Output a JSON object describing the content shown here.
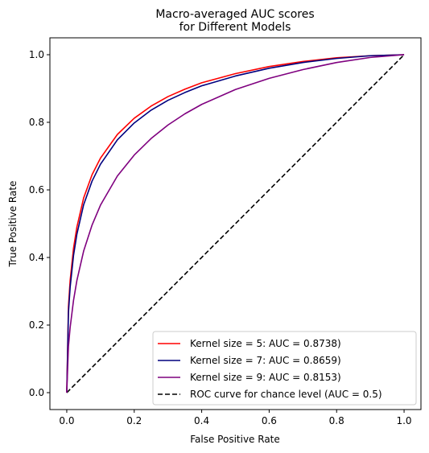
{
  "chart_data": {
    "type": "line",
    "title_line1": "Macro-averaged AUC scores",
    "title_line2": "for Different Models",
    "xlabel": "False Positive Rate",
    "ylabel": "True Positive Rate",
    "xlim": [
      -0.05,
      1.05
    ],
    "ylim": [
      -0.05,
      1.05
    ],
    "xticks": [
      0.0,
      0.2,
      0.4,
      0.6,
      0.8,
      1.0
    ],
    "yticks": [
      0.0,
      0.2,
      0.4,
      0.6,
      0.8,
      1.0
    ],
    "tick_labels": [
      "0.0",
      "0.2",
      "0.4",
      "0.6",
      "0.8",
      "1.0"
    ],
    "grid": false,
    "legend_position": "lower-right",
    "x": [
      0,
      0.005,
      0.01,
      0.02,
      0.03,
      0.05,
      0.075,
      0.1,
      0.15,
      0.2,
      0.25,
      0.3,
      0.35,
      0.4,
      0.5,
      0.6,
      0.7,
      0.8,
      0.9,
      1.0
    ],
    "series": [
      {
        "name": "Kernel size = 5: AUC = 0.8738)",
        "color": "#ff0000",
        "dash": "solid",
        "values": [
          0,
          0.255,
          0.332,
          0.427,
          0.49,
          0.576,
          0.645,
          0.694,
          0.764,
          0.812,
          0.848,
          0.876,
          0.898,
          0.917,
          0.944,
          0.965,
          0.98,
          0.991,
          0.997,
          1.0
        ]
      },
      {
        "name": "Kernel size = 7: AUC = 0.8659)",
        "color": "#00007f",
        "dash": "solid",
        "values": [
          0,
          0.237,
          0.312,
          0.406,
          0.469,
          0.556,
          0.626,
          0.676,
          0.748,
          0.798,
          0.836,
          0.865,
          0.888,
          0.908,
          0.937,
          0.96,
          0.977,
          0.989,
          0.997,
          1.0
        ]
      },
      {
        "name": "Kernel size = 9: AUC = 0.8153)",
        "color": "#7f007f",
        "dash": "solid",
        "values": [
          0,
          0.137,
          0.193,
          0.273,
          0.332,
          0.419,
          0.496,
          0.555,
          0.641,
          0.703,
          0.752,
          0.792,
          0.825,
          0.853,
          0.897,
          0.93,
          0.956,
          0.977,
          0.992,
          1.0
        ]
      },
      {
        "name": "ROC curve for chance level (AUC = 0.5)",
        "color": "#000000",
        "dash": "dashed",
        "values": [
          0,
          0.005,
          0.01,
          0.02,
          0.03,
          0.05,
          0.075,
          0.1,
          0.15,
          0.2,
          0.25,
          0.3,
          0.35,
          0.4,
          0.5,
          0.6,
          0.7,
          0.8,
          0.9,
          1.0
        ]
      }
    ]
  }
}
